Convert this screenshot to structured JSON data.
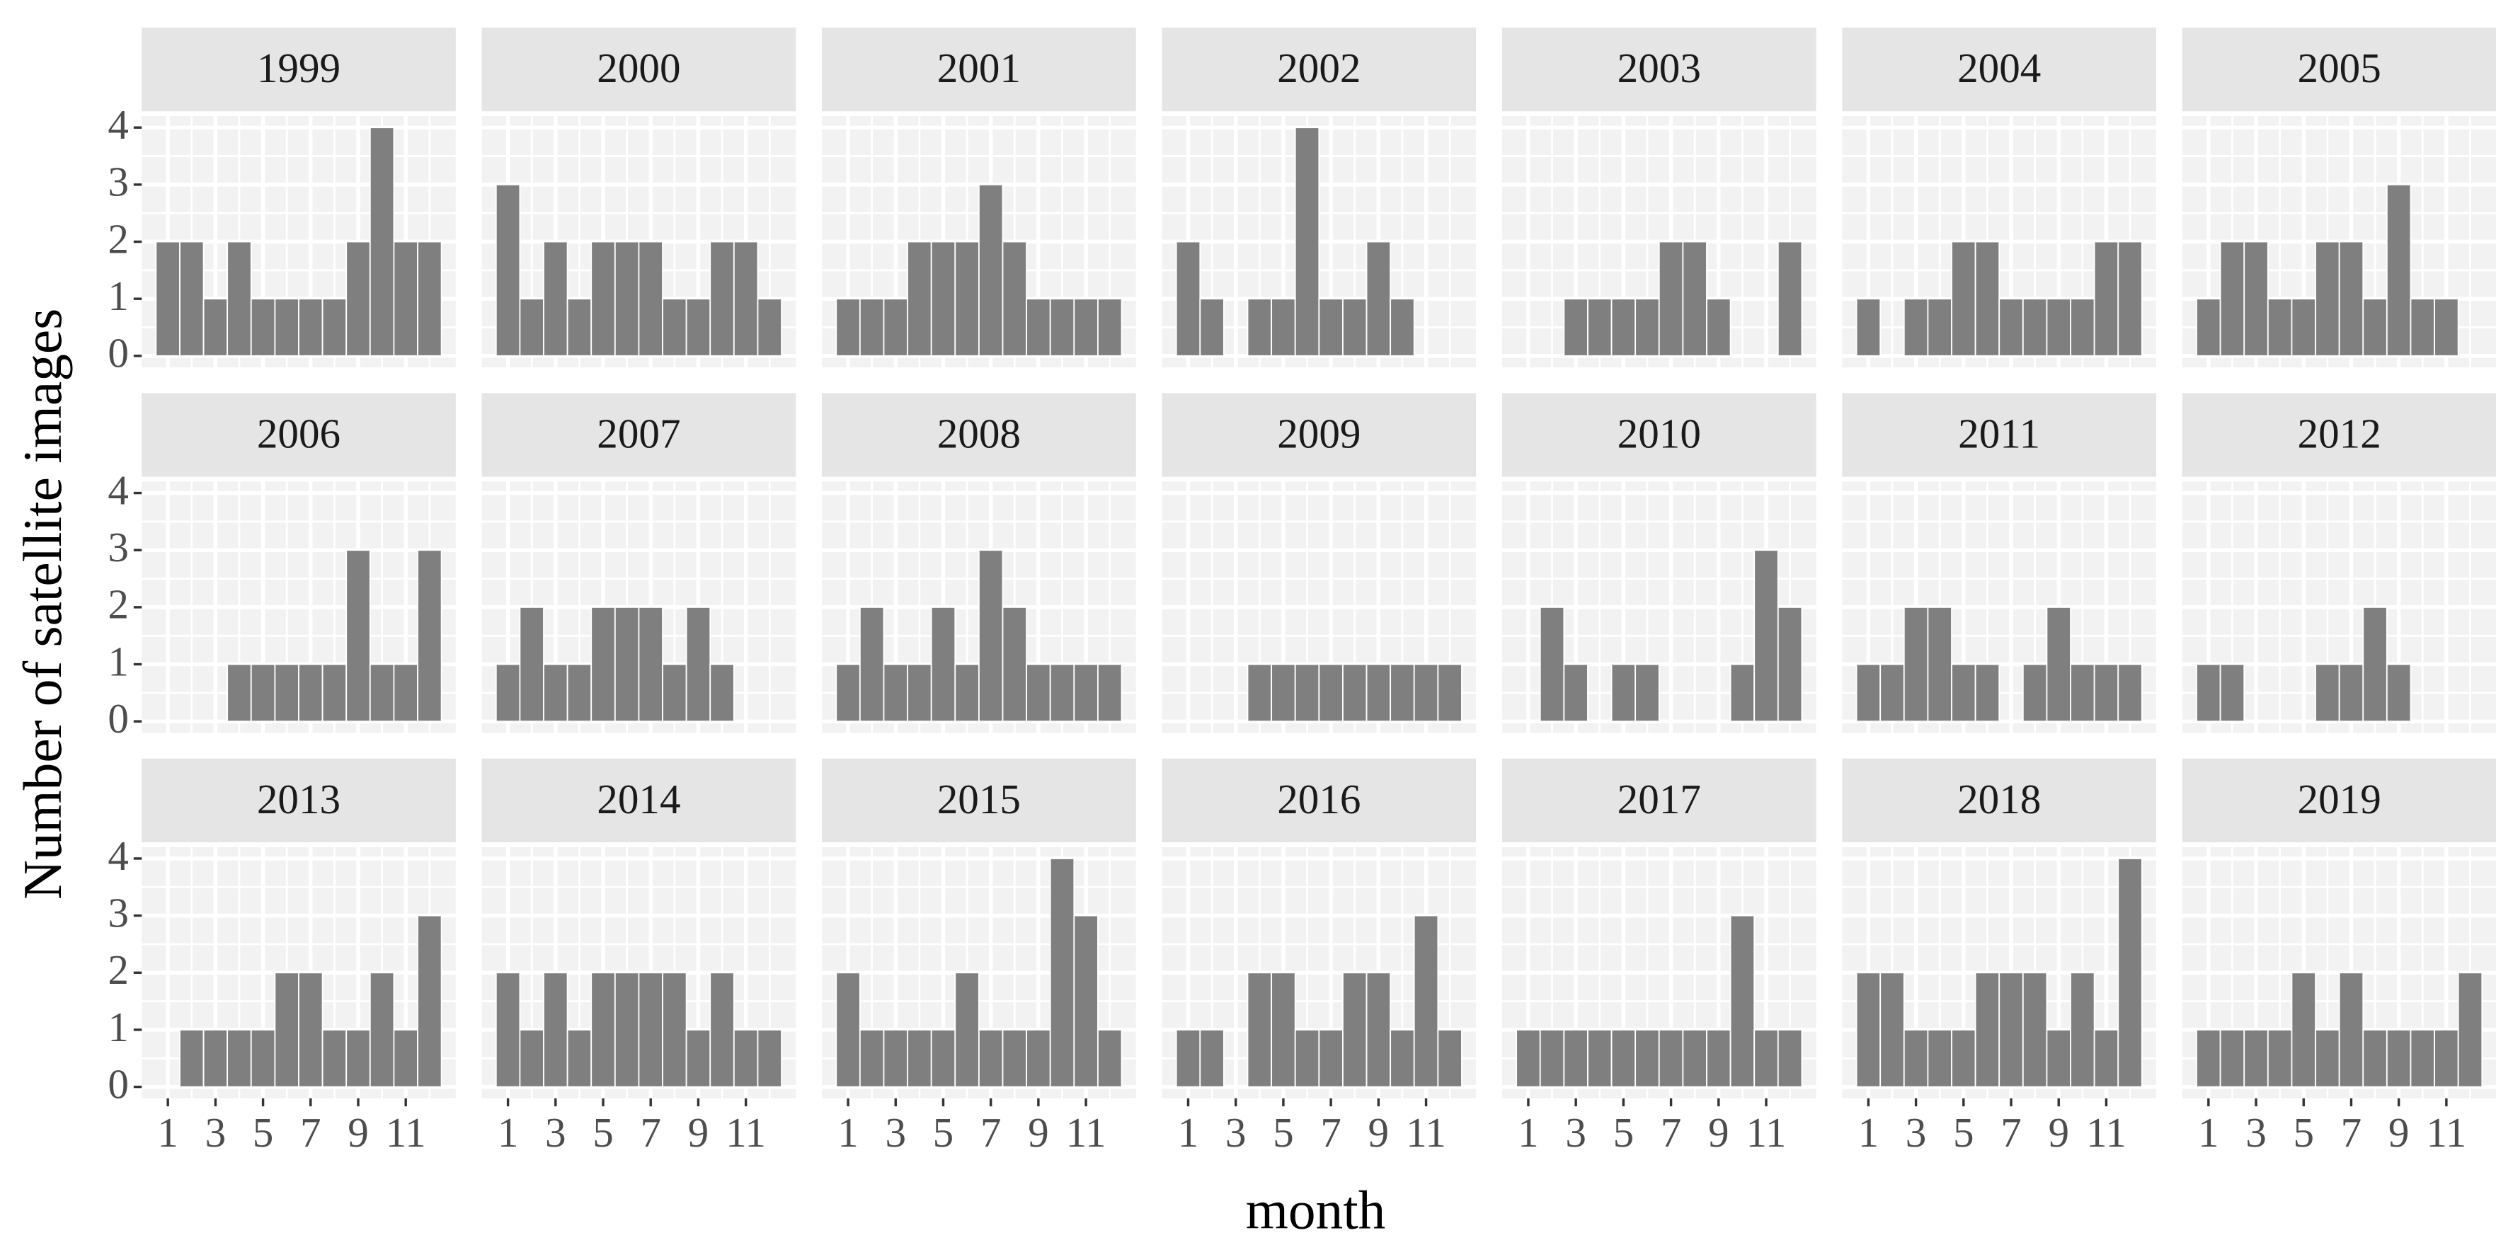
{
  "ylabel": "Number of satellite images",
  "xlabel": "month",
  "chart_data": [
    {
      "type": "bar",
      "title": "1999",
      "x": [
        1,
        2,
        3,
        4,
        5,
        6,
        7,
        8,
        9,
        10,
        11,
        12
      ],
      "values": [
        2,
        2,
        1,
        2,
        1,
        1,
        1,
        1,
        2,
        4,
        2,
        2
      ],
      "color": "#7f7f7f",
      "xlim": [
        -0.1,
        13.1
      ],
      "xticks": [
        1,
        3,
        5,
        7,
        9,
        11
      ],
      "ylim": [
        -0.2,
        4.2
      ],
      "yticks": [
        0,
        1,
        2,
        3,
        4
      ]
    },
    {
      "type": "bar",
      "title": "2000",
      "x": [
        1,
        2,
        3,
        4,
        5,
        6,
        7,
        8,
        9,
        10,
        11,
        12
      ],
      "values": [
        3,
        1,
        2,
        1,
        2,
        2,
        2,
        1,
        1,
        2,
        2,
        1
      ],
      "color": "#7f7f7f",
      "xlim": [
        -0.1,
        13.1
      ],
      "xticks": [
        1,
        3,
        5,
        7,
        9,
        11
      ],
      "ylim": [
        -0.2,
        4.2
      ],
      "yticks": [
        0,
        1,
        2,
        3,
        4
      ]
    },
    {
      "type": "bar",
      "title": "2001",
      "x": [
        1,
        2,
        3,
        4,
        5,
        6,
        7,
        8,
        9,
        10,
        11,
        12
      ],
      "values": [
        1,
        1,
        1,
        2,
        2,
        2,
        3,
        2,
        1,
        1,
        1,
        1
      ],
      "color": "#7f7f7f",
      "xlim": [
        -0.1,
        13.1
      ],
      "xticks": [
        1,
        3,
        5,
        7,
        9,
        11
      ],
      "ylim": [
        -0.2,
        4.2
      ],
      "yticks": [
        0,
        1,
        2,
        3,
        4
      ]
    },
    {
      "type": "bar",
      "title": "2002",
      "x": [
        1,
        2,
        3,
        4,
        5,
        6,
        7,
        8,
        9,
        10,
        11,
        12
      ],
      "values": [
        2,
        1,
        0,
        1,
        1,
        4,
        1,
        1,
        2,
        1,
        0,
        0
      ],
      "color": "#7f7f7f",
      "xlim": [
        -0.1,
        13.1
      ],
      "xticks": [
        1,
        3,
        5,
        7,
        9,
        11
      ],
      "ylim": [
        -0.2,
        4.2
      ],
      "yticks": [
        0,
        1,
        2,
        3,
        4
      ]
    },
    {
      "type": "bar",
      "title": "2003",
      "x": [
        1,
        2,
        3,
        4,
        5,
        6,
        7,
        8,
        9,
        10,
        11,
        12
      ],
      "values": [
        0,
        0,
        1,
        1,
        1,
        1,
        2,
        2,
        1,
        0,
        0,
        2
      ],
      "color": "#7f7f7f",
      "xlim": [
        -0.1,
        13.1
      ],
      "xticks": [
        1,
        3,
        5,
        7,
        9,
        11
      ],
      "ylim": [
        -0.2,
        4.2
      ],
      "yticks": [
        0,
        1,
        2,
        3,
        4
      ]
    },
    {
      "type": "bar",
      "title": "2004",
      "x": [
        1,
        2,
        3,
        4,
        5,
        6,
        7,
        8,
        9,
        10,
        11,
        12
      ],
      "values": [
        1,
        0,
        1,
        1,
        2,
        2,
        1,
        1,
        1,
        1,
        2,
        2
      ],
      "color": "#7f7f7f",
      "xlim": [
        -0.1,
        13.1
      ],
      "xticks": [
        1,
        3,
        5,
        7,
        9,
        11
      ],
      "ylim": [
        -0.2,
        4.2
      ],
      "yticks": [
        0,
        1,
        2,
        3,
        4
      ]
    },
    {
      "type": "bar",
      "title": "2005",
      "x": [
        1,
        2,
        3,
        4,
        5,
        6,
        7,
        8,
        9,
        10,
        11,
        12
      ],
      "values": [
        1,
        2,
        2,
        1,
        1,
        2,
        2,
        1,
        3,
        1,
        1,
        0
      ],
      "color": "#7f7f7f",
      "xlim": [
        -0.1,
        13.1
      ],
      "xticks": [
        1,
        3,
        5,
        7,
        9,
        11
      ],
      "ylim": [
        -0.2,
        4.2
      ],
      "yticks": [
        0,
        1,
        2,
        3,
        4
      ]
    },
    {
      "type": "bar",
      "title": "2006",
      "x": [
        1,
        2,
        3,
        4,
        5,
        6,
        7,
        8,
        9,
        10,
        11,
        12
      ],
      "values": [
        0,
        0,
        0,
        1,
        1,
        1,
        1,
        1,
        3,
        1,
        1,
        3
      ],
      "color": "#7f7f7f",
      "xlim": [
        -0.1,
        13.1
      ],
      "xticks": [
        1,
        3,
        5,
        7,
        9,
        11
      ],
      "ylim": [
        -0.2,
        4.2
      ],
      "yticks": [
        0,
        1,
        2,
        3,
        4
      ]
    },
    {
      "type": "bar",
      "title": "2007",
      "x": [
        1,
        2,
        3,
        4,
        5,
        6,
        7,
        8,
        9,
        10,
        11,
        12
      ],
      "values": [
        1,
        2,
        1,
        1,
        2,
        2,
        2,
        1,
        2,
        1,
        0,
        0
      ],
      "color": "#7f7f7f",
      "xlim": [
        -0.1,
        13.1
      ],
      "xticks": [
        1,
        3,
        5,
        7,
        9,
        11
      ],
      "ylim": [
        -0.2,
        4.2
      ],
      "yticks": [
        0,
        1,
        2,
        3,
        4
      ]
    },
    {
      "type": "bar",
      "title": "2008",
      "x": [
        1,
        2,
        3,
        4,
        5,
        6,
        7,
        8,
        9,
        10,
        11,
        12
      ],
      "values": [
        1,
        2,
        1,
        1,
        2,
        1,
        3,
        2,
        1,
        1,
        1,
        1
      ],
      "color": "#7f7f7f",
      "xlim": [
        -0.1,
        13.1
      ],
      "xticks": [
        1,
        3,
        5,
        7,
        9,
        11
      ],
      "ylim": [
        -0.2,
        4.2
      ],
      "yticks": [
        0,
        1,
        2,
        3,
        4
      ]
    },
    {
      "type": "bar",
      "title": "2009",
      "x": [
        1,
        2,
        3,
        4,
        5,
        6,
        7,
        8,
        9,
        10,
        11,
        12
      ],
      "values": [
        0,
        0,
        0,
        1,
        1,
        1,
        1,
        1,
        1,
        1,
        1,
        1
      ],
      "color": "#7f7f7f",
      "xlim": [
        -0.1,
        13.1
      ],
      "xticks": [
        1,
        3,
        5,
        7,
        9,
        11
      ],
      "ylim": [
        -0.2,
        4.2
      ],
      "yticks": [
        0,
        1,
        2,
        3,
        4
      ]
    },
    {
      "type": "bar",
      "title": "2010",
      "x": [
        1,
        2,
        3,
        4,
        5,
        6,
        7,
        8,
        9,
        10,
        11,
        12
      ],
      "values": [
        0,
        2,
        1,
        0,
        1,
        1,
        0,
        0,
        0,
        1,
        3,
        2
      ],
      "color": "#7f7f7f",
      "xlim": [
        -0.1,
        13.1
      ],
      "xticks": [
        1,
        3,
        5,
        7,
        9,
        11
      ],
      "ylim": [
        -0.2,
        4.2
      ],
      "yticks": [
        0,
        1,
        2,
        3,
        4
      ]
    },
    {
      "type": "bar",
      "title": "2011",
      "x": [
        1,
        2,
        3,
        4,
        5,
        6,
        7,
        8,
        9,
        10,
        11,
        12
      ],
      "values": [
        1,
        1,
        2,
        2,
        1,
        1,
        0,
        1,
        2,
        1,
        1,
        1
      ],
      "color": "#7f7f7f",
      "xlim": [
        -0.1,
        13.1
      ],
      "xticks": [
        1,
        3,
        5,
        7,
        9,
        11
      ],
      "ylim": [
        -0.2,
        4.2
      ],
      "yticks": [
        0,
        1,
        2,
        3,
        4
      ]
    },
    {
      "type": "bar",
      "title": "2012",
      "x": [
        1,
        2,
        3,
        4,
        5,
        6,
        7,
        8,
        9,
        10,
        11,
        12
      ],
      "values": [
        1,
        1,
        0,
        0,
        0,
        1,
        1,
        2,
        1,
        0,
        0,
        0
      ],
      "color": "#7f7f7f",
      "xlim": [
        -0.1,
        13.1
      ],
      "xticks": [
        1,
        3,
        5,
        7,
        9,
        11
      ],
      "ylim": [
        -0.2,
        4.2
      ],
      "yticks": [
        0,
        1,
        2,
        3,
        4
      ]
    },
    {
      "type": "bar",
      "title": "2013",
      "x": [
        1,
        2,
        3,
        4,
        5,
        6,
        7,
        8,
        9,
        10,
        11,
        12
      ],
      "values": [
        0,
        1,
        1,
        1,
        1,
        2,
        2,
        1,
        1,
        2,
        1,
        3
      ],
      "color": "#7f7f7f",
      "xlim": [
        -0.1,
        13.1
      ],
      "xticks": [
        1,
        3,
        5,
        7,
        9,
        11
      ],
      "ylim": [
        -0.2,
        4.2
      ],
      "yticks": [
        0,
        1,
        2,
        3,
        4
      ]
    },
    {
      "type": "bar",
      "title": "2014",
      "x": [
        1,
        2,
        3,
        4,
        5,
        6,
        7,
        8,
        9,
        10,
        11,
        12
      ],
      "values": [
        2,
        1,
        2,
        1,
        2,
        2,
        2,
        2,
        1,
        2,
        1,
        1
      ],
      "color": "#7f7f7f",
      "xlim": [
        -0.1,
        13.1
      ],
      "xticks": [
        1,
        3,
        5,
        7,
        9,
        11
      ],
      "ylim": [
        -0.2,
        4.2
      ],
      "yticks": [
        0,
        1,
        2,
        3,
        4
      ]
    },
    {
      "type": "bar",
      "title": "2015",
      "x": [
        1,
        2,
        3,
        4,
        5,
        6,
        7,
        8,
        9,
        10,
        11,
        12
      ],
      "values": [
        2,
        1,
        1,
        1,
        1,
        2,
        1,
        1,
        1,
        4,
        3,
        1
      ],
      "color": "#7f7f7f",
      "xlim": [
        -0.1,
        13.1
      ],
      "xticks": [
        1,
        3,
        5,
        7,
        9,
        11
      ],
      "ylim": [
        -0.2,
        4.2
      ],
      "yticks": [
        0,
        1,
        2,
        3,
        4
      ]
    },
    {
      "type": "bar",
      "title": "2016",
      "x": [
        1,
        2,
        3,
        4,
        5,
        6,
        7,
        8,
        9,
        10,
        11,
        12
      ],
      "values": [
        1,
        1,
        0,
        2,
        2,
        1,
        1,
        2,
        2,
        1,
        3,
        1
      ],
      "color": "#7f7f7f",
      "xlim": [
        -0.1,
        13.1
      ],
      "xticks": [
        1,
        3,
        5,
        7,
        9,
        11
      ],
      "ylim": [
        -0.2,
        4.2
      ],
      "yticks": [
        0,
        1,
        2,
        3,
        4
      ]
    },
    {
      "type": "bar",
      "title": "2017",
      "x": [
        1,
        2,
        3,
        4,
        5,
        6,
        7,
        8,
        9,
        10,
        11,
        12
      ],
      "values": [
        1,
        1,
        1,
        1,
        1,
        1,
        1,
        1,
        1,
        3,
        1,
        1
      ],
      "color": "#7f7f7f",
      "xlim": [
        -0.1,
        13.1
      ],
      "xticks": [
        1,
        3,
        5,
        7,
        9,
        11
      ],
      "ylim": [
        -0.2,
        4.2
      ],
      "yticks": [
        0,
        1,
        2,
        3,
        4
      ]
    },
    {
      "type": "bar",
      "title": "2018",
      "x": [
        1,
        2,
        3,
        4,
        5,
        6,
        7,
        8,
        9,
        10,
        11,
        12
      ],
      "values": [
        2,
        2,
        1,
        1,
        1,
        2,
        2,
        2,
        1,
        2,
        1,
        4
      ],
      "color": "#7f7f7f",
      "xlim": [
        -0.1,
        13.1
      ],
      "xticks": [
        1,
        3,
        5,
        7,
        9,
        11
      ],
      "ylim": [
        -0.2,
        4.2
      ],
      "yticks": [
        0,
        1,
        2,
        3,
        4
      ]
    },
    {
      "type": "bar",
      "title": "2019",
      "x": [
        1,
        2,
        3,
        4,
        5,
        6,
        7,
        8,
        9,
        10,
        11,
        12
      ],
      "values": [
        1,
        1,
        1,
        1,
        2,
        1,
        2,
        1,
        1,
        1,
        1,
        2
      ],
      "color": "#7f7f7f",
      "xlim": [
        -0.1,
        13.1
      ],
      "xticks": [
        1,
        3,
        5,
        7,
        9,
        11
      ],
      "ylim": [
        -0.2,
        4.2
      ],
      "yticks": [
        0,
        1,
        2,
        3,
        4
      ]
    }
  ]
}
